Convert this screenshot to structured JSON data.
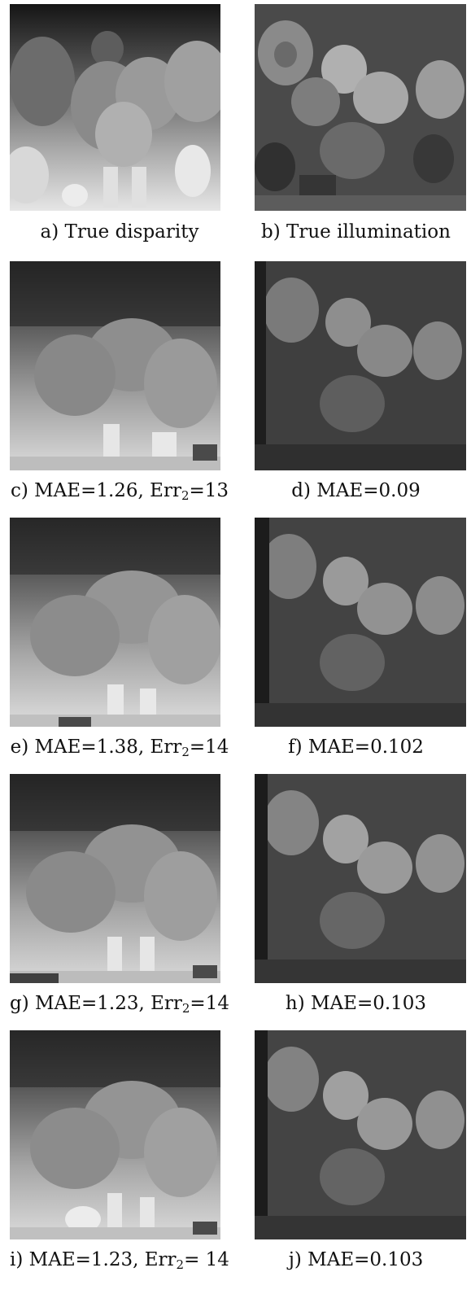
{
  "figure": {
    "rows": [
      {
        "left": {
          "caption": "a) True disparity",
          "kind": "disparity",
          "variant": "truth"
        },
        "right": {
          "caption": "b) True illumination",
          "kind": "illumination",
          "variant": "truth"
        }
      },
      {
        "left": {
          "caption_pre": "c) MAE=1.26, Err",
          "caption_sub": "2",
          "caption_post": "=13",
          "kind": "disparity",
          "variant": "est1"
        },
        "right": {
          "caption": "d) MAE=0.09",
          "kind": "illumination",
          "variant": "est1"
        }
      },
      {
        "left": {
          "caption_pre": "e) MAE=1.38, Err",
          "caption_sub": "2",
          "caption_post": "=14",
          "kind": "disparity",
          "variant": "est2"
        },
        "right": {
          "caption": "f) MAE=0.102",
          "kind": "illumination",
          "variant": "est2"
        }
      },
      {
        "left": {
          "caption_pre": "g) MAE=1.23, Err",
          "caption_sub": "2",
          "caption_post": "=14",
          "kind": "disparity",
          "variant": "est3"
        },
        "right": {
          "caption": "h) MAE=0.103",
          "kind": "illumination",
          "variant": "est3"
        }
      },
      {
        "left": {
          "caption_pre": "i) MAE=1.23, Err",
          "caption_sub": "2",
          "caption_post": "= 14",
          "kind": "disparity",
          "variant": "est4"
        },
        "right": {
          "caption": "j) MAE=0.103",
          "kind": "illumination",
          "variant": "est4"
        }
      }
    ]
  }
}
